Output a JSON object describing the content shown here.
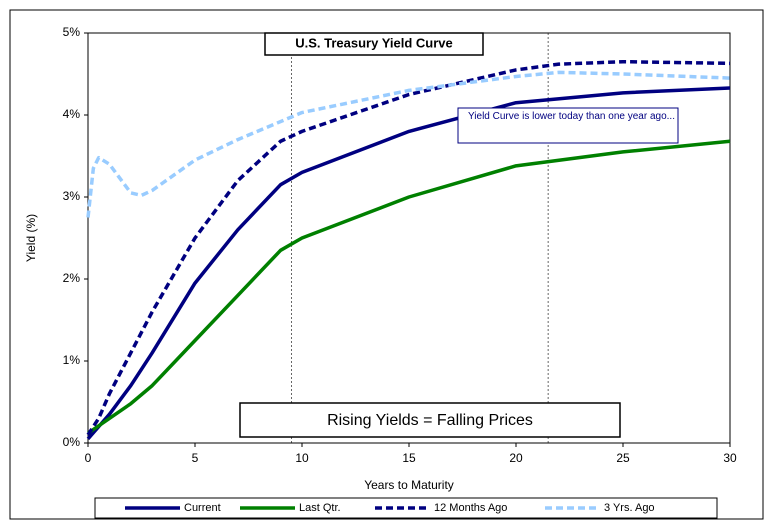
{
  "chart_data": {
    "type": "line",
    "title": "U.S. Treasury Yield Curve",
    "x_label": "Years to Maturity",
    "y_label": "Yield (%)",
    "annotations": [
      "Yield Curve is lower today than one year ago...",
      "Rising Yields = Falling Prices"
    ],
    "reference_lines_x": [
      9.5,
      21.5
    ],
    "xlim": [
      0,
      30
    ],
    "xticks": [
      0,
      5,
      10,
      15,
      20,
      25,
      30
    ],
    "ylim": [
      0,
      5
    ],
    "yticks": [
      {
        "value": 0,
        "label": "0%"
      },
      {
        "value": 1,
        "label": "1%"
      },
      {
        "value": 2,
        "label": "2%"
      },
      {
        "value": 3,
        "label": "3%"
      },
      {
        "value": 4,
        "label": "4%"
      },
      {
        "value": 5,
        "label": "5%"
      }
    ],
    "legend": "bottom",
    "series": [
      {
        "name": "Current",
        "color": "#000080",
        "dash": "solid",
        "x": [
          0,
          0.5,
          1,
          2,
          3,
          5,
          7,
          9,
          10,
          15,
          20,
          25,
          30
        ],
        "values": [
          0.05,
          0.2,
          0.35,
          0.7,
          1.1,
          1.95,
          2.6,
          3.15,
          3.3,
          3.8,
          4.15,
          4.27,
          4.33
        ]
      },
      {
        "name": "Last Qtr.",
        "color": "#008000",
        "dash": "solid",
        "x": [
          0,
          1,
          2,
          3,
          5,
          7,
          9,
          10,
          15,
          20,
          25,
          30
        ],
        "values": [
          0.12,
          0.3,
          0.48,
          0.7,
          1.25,
          1.8,
          2.35,
          2.5,
          3.0,
          3.38,
          3.55,
          3.68
        ]
      },
      {
        "name": "12 Months Ago",
        "color": "#000080",
        "dash": "dashed",
        "x": [
          0,
          0.5,
          1,
          2,
          3,
          5,
          7,
          9,
          10,
          15,
          20,
          22,
          25,
          30
        ],
        "values": [
          0.1,
          0.3,
          0.6,
          1.1,
          1.6,
          2.5,
          3.2,
          3.68,
          3.8,
          4.25,
          4.55,
          4.62,
          4.65,
          4.63
        ]
      },
      {
        "name": "3 Yrs. Ago",
        "color": "#99ccff",
        "dash": "dashed",
        "x": [
          0,
          0.25,
          0.5,
          1,
          2,
          2.5,
          3,
          5,
          7,
          10,
          15,
          20,
          22,
          25,
          30
        ],
        "values": [
          2.75,
          3.35,
          3.48,
          3.4,
          3.05,
          3.02,
          3.08,
          3.45,
          3.7,
          4.03,
          4.3,
          4.47,
          4.52,
          4.5,
          4.45
        ]
      }
    ]
  }
}
